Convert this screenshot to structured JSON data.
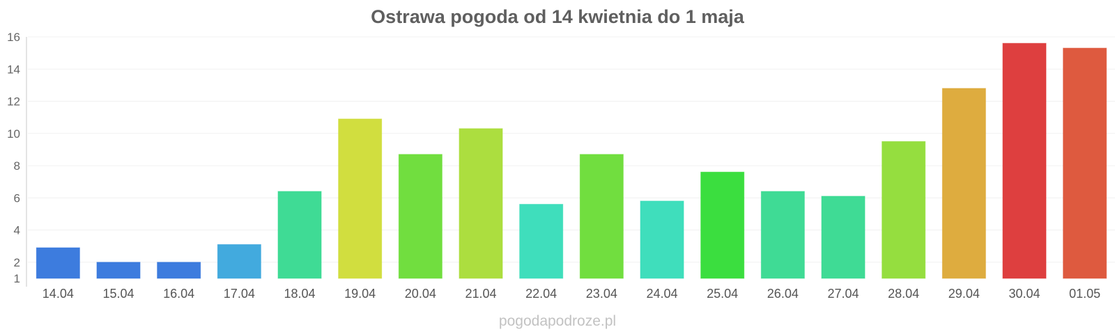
{
  "chart_data": {
    "type": "bar",
    "title": "Ostrawa pogoda od 14 kwietnia do 1 maja",
    "xlabel": "",
    "ylabel": "",
    "categories": [
      "14.04",
      "15.04",
      "16.04",
      "17.04",
      "18.04",
      "19.04",
      "20.04",
      "21.04",
      "22.04",
      "23.04",
      "24.04",
      "25.04",
      "26.04",
      "27.04",
      "28.04",
      "29.04",
      "30.04",
      "01.05"
    ],
    "values": [
      2.9,
      2.0,
      2.0,
      3.1,
      6.4,
      10.9,
      8.7,
      10.3,
      5.6,
      8.7,
      5.8,
      7.6,
      6.4,
      6.1,
      9.5,
      12.8,
      15.6,
      15.3
    ],
    "colors": [
      "#3375dc",
      "#3375dc",
      "#3375dc",
      "#38a5dc",
      "#35d98f",
      "#cfdc35",
      "#69dc35",
      "#a8dc35",
      "#35dcb8",
      "#69dc35",
      "#35dcb8",
      "#30dc35",
      "#35d98f",
      "#35d98f",
      "#8fdc35",
      "#dca835",
      "#dc3535",
      "#dc5135"
    ],
    "yticks": [
      1,
      2,
      4,
      6,
      8,
      10,
      12,
      14,
      16
    ],
    "ylim": [
      1,
      16
    ],
    "grid": true,
    "legend": "none"
  },
  "watermark": "pogodapodroze.pl"
}
